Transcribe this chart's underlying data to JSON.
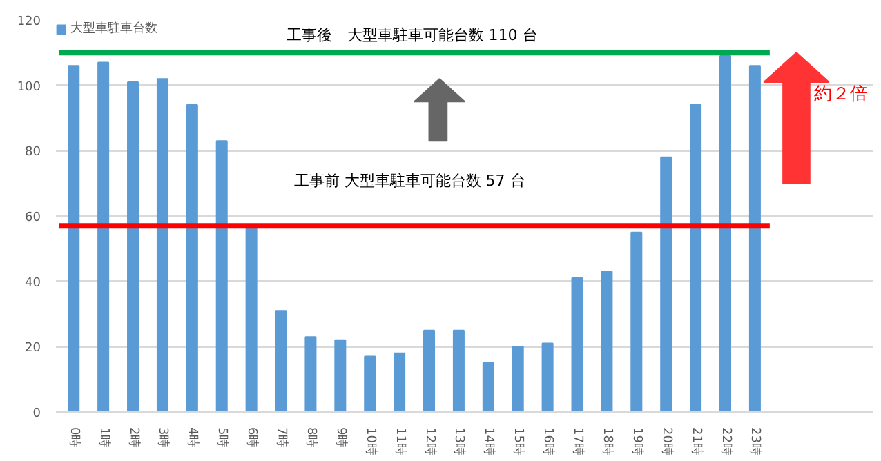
{
  "chart_data": {
    "type": "bar",
    "categories": [
      "0時",
      "1時",
      "2時",
      "3時",
      "4時",
      "5時",
      "6時",
      "7時",
      "8時",
      "9時",
      "10時",
      "11時",
      "12時",
      "13時",
      "14時",
      "15時",
      "16時",
      "17時",
      "18時",
      "19時",
      "20時",
      "21時",
      "22時",
      "23時"
    ],
    "series": [
      {
        "name": "大型車駐車台数",
        "color": "#5b9bd5",
        "values": [
          106,
          107,
          101,
          102,
          94,
          83,
          57,
          31,
          23,
          22,
          17,
          18,
          25,
          25,
          15,
          20,
          21,
          41,
          43,
          55,
          78,
          94,
          109,
          106
        ]
      }
    ],
    "ylim": [
      0,
      120
    ],
    "yticks": [
      0,
      20,
      40,
      60,
      80,
      100,
      120
    ],
    "grid": "y",
    "legend": "top left",
    "ref_lines": [
      {
        "axis": "y",
        "value": 110,
        "label": "工事後　大型車駐車可能台数  110 台",
        "color": "#00a84f"
      },
      {
        "axis": "y",
        "value": 57,
        "label": "工事前  大型車駐車可能台数  57 台",
        "color": "#ff0000"
      }
    ],
    "annotations": [
      "約２倍"
    ]
  }
}
